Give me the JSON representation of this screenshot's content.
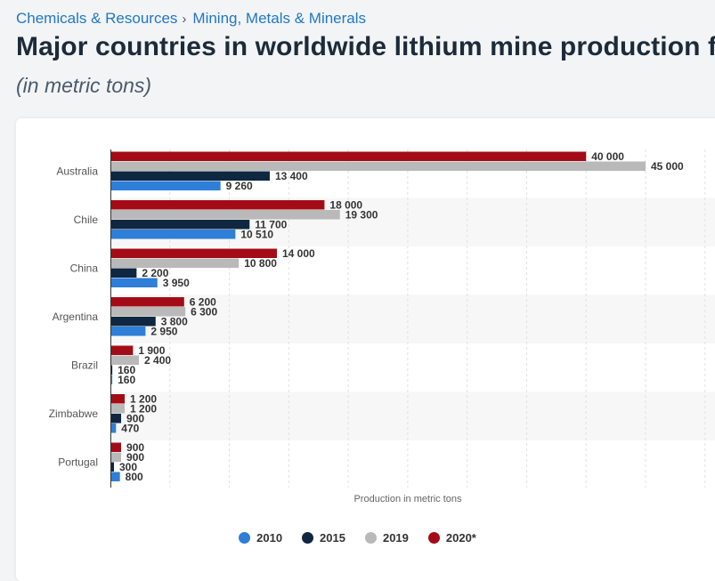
{
  "breadcrumb": {
    "items": [
      "Chemicals & Resources",
      "Mining, Metals & Minerals"
    ],
    "separator": "›"
  },
  "title": "Major countries in worldwide lithium mine production f",
  "subtitle": "(in metric tons)",
  "colors": {
    "s2010": "#2f7ed8",
    "s2015": "#0f2740",
    "s2019": "#b9b9b9",
    "s2020": "#a30c17"
  },
  "chart_data": {
    "type": "bar",
    "orientation": "horizontal",
    "categories": [
      "Australia",
      "Chile",
      "China",
      "Argentina",
      "Brazil",
      "Zimbabwe",
      "Portugal"
    ],
    "series": [
      {
        "name": "2020*",
        "values": [
          40000,
          18000,
          14000,
          6200,
          1900,
          1200,
          900
        ],
        "labels": [
          "40 000",
          "18 000",
          "14 000",
          "6 200",
          "1 900",
          "1 200",
          "900"
        ]
      },
      {
        "name": "2019",
        "values": [
          45000,
          19300,
          10800,
          6300,
          2400,
          1200,
          900
        ],
        "labels": [
          "45 000",
          "19 300",
          "10 800",
          "6 300",
          "2 400",
          "1 200",
          "900"
        ]
      },
      {
        "name": "2015",
        "values": [
          13400,
          11700,
          2200,
          3800,
          160,
          900,
          300
        ],
        "labels": [
          "13 400",
          "11 700",
          "2 200",
          "3 800",
          "160",
          "900",
          "300"
        ]
      },
      {
        "name": "2010",
        "values": [
          9260,
          10510,
          3950,
          2950,
          160,
          470,
          800
        ],
        "labels": [
          "9 260",
          "10 510",
          "3 950",
          "2 950",
          "160",
          "470",
          "800"
        ]
      }
    ],
    "xlabel": "Production in metric tons",
    "ylabel": "",
    "xlim": [
      0,
      50000
    ],
    "grid": true,
    "legend_position": "bottom",
    "legend": [
      "2010",
      "2015",
      "2019",
      "2020*"
    ]
  }
}
